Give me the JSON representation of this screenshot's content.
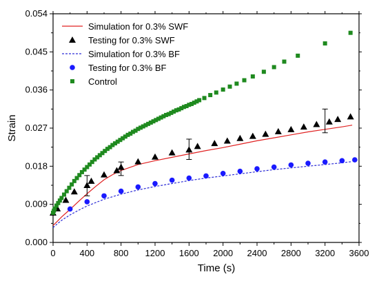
{
  "chart_data": {
    "type": "scatter",
    "xlabel": "Time (s)",
    "ylabel": "Strain",
    "xlim": [
      0,
      3600
    ],
    "ylim": [
      0,
      0.054
    ],
    "xticks": [
      0,
      400,
      800,
      1200,
      1600,
      2000,
      2400,
      2800,
      3200,
      3600
    ],
    "xtick_labels": [
      "0",
      "400",
      "800",
      "1200",
      "1600",
      "2000",
      "2400",
      "2800",
      "3200",
      "3600"
    ],
    "yticks": [
      0,
      0.009,
      0.018,
      0.027,
      0.036,
      0.045,
      0.054
    ],
    "ytick_labels": [
      "0.000",
      "0.009",
      "0.018",
      "0.027",
      "0.036",
      "0.045",
      "0.054"
    ],
    "grid": false,
    "legend_position": "top-left",
    "series": [
      {
        "name": "Simulation for 0.3% SWF",
        "kind": "line",
        "style": "solid",
        "color": "#e02020",
        "x": [
          0,
          50,
          100,
          200,
          300,
          400,
          500,
          600,
          700,
          800,
          1000,
          1200,
          1400,
          1600,
          1800,
          2000,
          2200,
          2400,
          2600,
          2800,
          3000,
          3200,
          3400,
          3520
        ],
        "y": [
          0.004,
          0.005,
          0.006,
          0.0078,
          0.0097,
          0.0115,
          0.0132,
          0.0148,
          0.016,
          0.017,
          0.0184,
          0.0193,
          0.0201,
          0.0209,
          0.0217,
          0.0224,
          0.0232,
          0.024,
          0.0247,
          0.0254,
          0.0261,
          0.0267,
          0.0273,
          0.0277
        ]
      },
      {
        "name": "Testing for 0.3% SWF",
        "kind": "scatter",
        "marker": "triangle",
        "color": "#000000",
        "x": [
          0,
          50,
          150,
          250,
          400,
          450,
          600,
          750,
          800,
          1000,
          1200,
          1400,
          1600,
          1700,
          1900,
          2050,
          2200,
          2350,
          2500,
          2650,
          2800,
          2950,
          3100,
          3250,
          3350,
          3500
        ],
        "y": [
          0.007,
          0.008,
          0.01,
          0.012,
          0.0135,
          0.0145,
          0.016,
          0.017,
          0.0178,
          0.0191,
          0.0202,
          0.0212,
          0.0219,
          0.0227,
          0.0234,
          0.024,
          0.0246,
          0.0251,
          0.0256,
          0.0262,
          0.0267,
          0.0273,
          0.0279,
          0.0285,
          0.0291,
          0.0297
        ]
      },
      {
        "name": "Simulation for 0.3% BF",
        "kind": "line",
        "style": "dashed",
        "color": "#2b2bd6",
        "x": [
          0,
          50,
          100,
          200,
          300,
          400,
          500,
          600,
          800,
          1000,
          1200,
          1400,
          1600,
          1800,
          2000,
          2200,
          2400,
          2600,
          2800,
          3000,
          3200,
          3400,
          3520
        ],
        "y": [
          0.0035,
          0.0044,
          0.0052,
          0.0065,
          0.0076,
          0.0086,
          0.0094,
          0.0102,
          0.0114,
          0.0124,
          0.0132,
          0.0139,
          0.0146,
          0.0152,
          0.0157,
          0.0162,
          0.0167,
          0.0172,
          0.0176,
          0.018,
          0.0184,
          0.0188,
          0.0191
        ]
      },
      {
        "name": "Testing for 0.3% BF",
        "kind": "scatter",
        "marker": "circle",
        "color": "#1a1aff",
        "x": [
          200,
          400,
          600,
          800,
          1000,
          1200,
          1400,
          1600,
          1800,
          2000,
          2200,
          2400,
          2600,
          2800,
          3000,
          3200,
          3400,
          3550
        ],
        "y": [
          0.0079,
          0.0096,
          0.011,
          0.0121,
          0.0131,
          0.0139,
          0.0147,
          0.0152,
          0.0157,
          0.0163,
          0.0168,
          0.0174,
          0.0178,
          0.0183,
          0.0187,
          0.019,
          0.0193,
          0.0195
        ]
      },
      {
        "name": "Control",
        "kind": "scatter",
        "marker": "square",
        "color": "#1f8a1f",
        "x": [
          0,
          10,
          20,
          40,
          60,
          80,
          100,
          130,
          160,
          190,
          220,
          250,
          280,
          310,
          340,
          370,
          400,
          430,
          460,
          490,
          520,
          550,
          580,
          610,
          640,
          670,
          700,
          730,
          760,
          790,
          820,
          850,
          880,
          910,
          940,
          970,
          1000,
          1030,
          1060,
          1090,
          1120,
          1150,
          1180,
          1210,
          1240,
          1270,
          1300,
          1330,
          1360,
          1390,
          1420,
          1450,
          1480,
          1510,
          1540,
          1570,
          1600,
          1630,
          1660,
          1690,
          1720,
          1780,
          1850,
          1920,
          2000,
          2080,
          2160,
          2250,
          2350,
          2480,
          2600,
          2720,
          2880,
          3200,
          3500
        ],
        "y": [
          0.007,
          0.0075,
          0.008,
          0.0087,
          0.0093,
          0.0099,
          0.0105,
          0.0113,
          0.0121,
          0.0129,
          0.0137,
          0.0145,
          0.0152,
          0.0159,
          0.0166,
          0.0172,
          0.0178,
          0.0184,
          0.019,
          0.0196,
          0.0201,
          0.0206,
          0.0211,
          0.0216,
          0.0221,
          0.0225,
          0.023,
          0.0234,
          0.0238,
          0.0242,
          0.0246,
          0.025,
          0.0254,
          0.0257,
          0.0261,
          0.0264,
          0.0268,
          0.0271,
          0.0274,
          0.0277,
          0.028,
          0.0283,
          0.0286,
          0.0289,
          0.0292,
          0.0295,
          0.0298,
          0.0301,
          0.0303,
          0.0306,
          0.0309,
          0.0312,
          0.0314,
          0.0317,
          0.032,
          0.0322,
          0.0325,
          0.0327,
          0.033,
          0.0333,
          0.0336,
          0.0341,
          0.0348,
          0.0354,
          0.0361,
          0.0368,
          0.0375,
          0.0383,
          0.0392,
          0.0403,
          0.0414,
          0.0427,
          0.0441,
          0.047,
          0.0495
        ]
      }
    ],
    "error_bars": [
      {
        "x": 400,
        "low": 0.011,
        "high": 0.0158
      },
      {
        "x": 800,
        "low": 0.0158,
        "high": 0.019
      },
      {
        "x": 1600,
        "low": 0.0196,
        "high": 0.0244
      },
      {
        "x": 3200,
        "low": 0.0259,
        "high": 0.0315
      }
    ]
  }
}
